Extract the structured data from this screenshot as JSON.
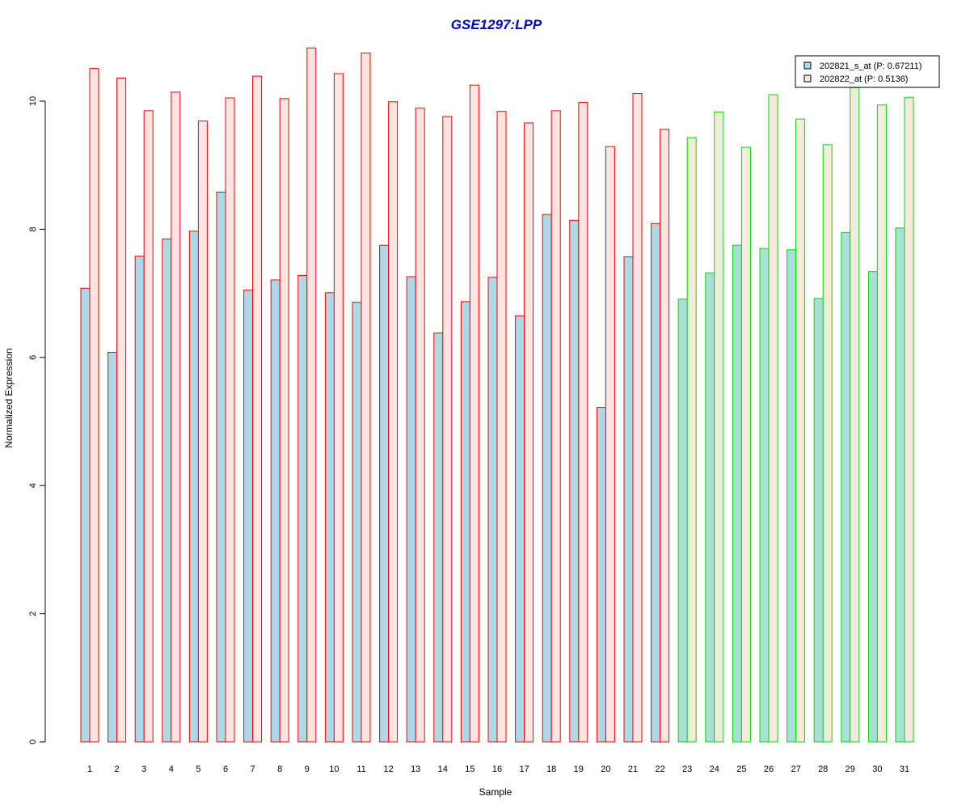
{
  "chart_data": {
    "type": "bar",
    "title": "GSE1297:LPP",
    "xlabel": "Sample",
    "ylabel": "Normalized Expression",
    "ylim": [
      0,
      11
    ],
    "yticks": [
      0,
      2,
      4,
      6,
      8,
      10
    ],
    "grid": false,
    "legend_position": "top-right",
    "categories": [
      "1",
      "2",
      "3",
      "4",
      "5",
      "6",
      "7",
      "8",
      "9",
      "10",
      "11",
      "12",
      "13",
      "14",
      "15",
      "16",
      "17",
      "18",
      "19",
      "20",
      "21",
      "22",
      "23",
      "24",
      "25",
      "26",
      "27",
      "28",
      "29",
      "30",
      "31"
    ],
    "series": [
      {
        "name": "202821_s_at (P: 0.67211)",
        "values": [
          7.08,
          6.08,
          7.58,
          7.85,
          7.97,
          8.58,
          7.05,
          7.21,
          7.28,
          7.01,
          6.86,
          7.75,
          7.26,
          6.38,
          6.87,
          7.25,
          6.65,
          8.23,
          8.14,
          5.22,
          7.57,
          8.09,
          6.91,
          7.32,
          7.75,
          7.7,
          7.68,
          6.92,
          7.95,
          7.34,
          8.02
        ]
      },
      {
        "name": "202822_at (P: 0.5136)",
        "values": [
          10.51,
          10.36,
          9.85,
          10.14,
          9.69,
          10.05,
          10.39,
          10.04,
          10.83,
          10.43,
          10.75,
          9.99,
          9.89,
          9.76,
          10.25,
          9.84,
          9.66,
          9.85,
          9.98,
          9.29,
          10.12,
          9.56,
          9.43,
          9.83,
          9.28,
          10.1,
          9.72,
          9.32,
          10.21,
          9.94,
          10.06
        ]
      }
    ],
    "group_sizes": [
      22,
      9
    ],
    "colors": {
      "series1_fill": "#add8e6",
      "series2_fill_group1": "#ffe4e1",
      "series2_fill_group2": "#f5ebdc",
      "series1_fill_group2": "#a8e0d8",
      "group1_border": "#ff0000",
      "group2_border": "#00dd00",
      "title": "#0000cc"
    }
  }
}
